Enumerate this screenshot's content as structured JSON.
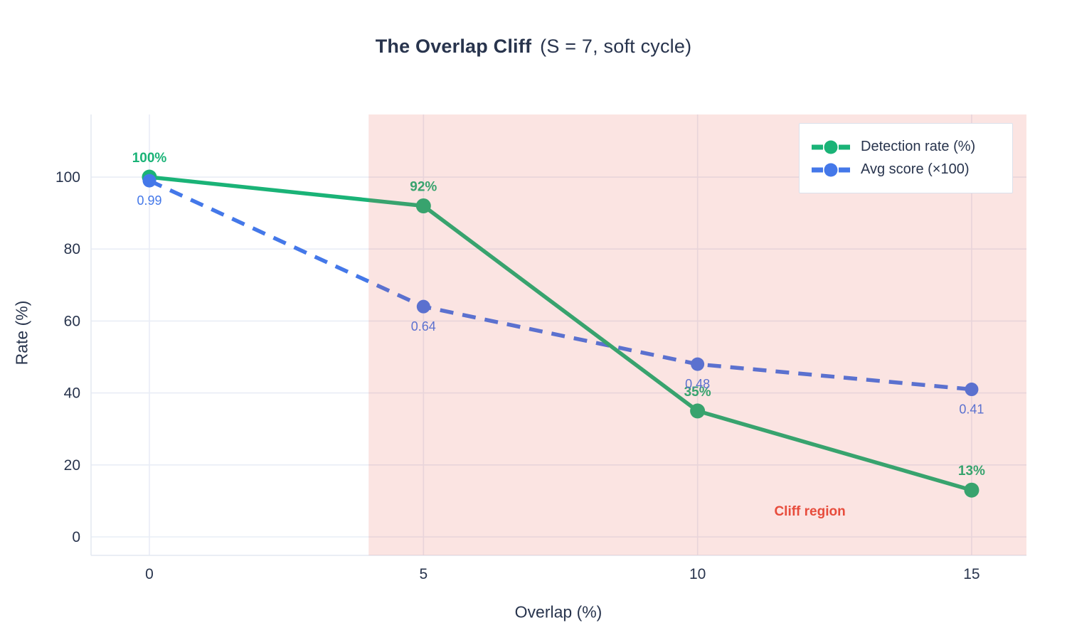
{
  "title": {
    "main": "The Overlap Cliff",
    "sub": "(S = 7, soft cycle)",
    "color": "#28344d"
  },
  "chart_data": {
    "type": "line",
    "title": "The Overlap Cliff (S = 7, soft cycle)",
    "xlabel": "Overlap (%)",
    "ylabel": "Rate (%)",
    "x": [
      0,
      5,
      10,
      15
    ],
    "series": [
      {
        "name": "Detection rate (%)",
        "values": [
          100,
          92,
          35,
          13
        ],
        "point_labels": [
          "100%",
          "92%",
          "35%",
          "13%"
        ],
        "label_side": "top",
        "color": "#1ab377",
        "dash": "",
        "line_width": 5.5,
        "marker_radius": 10.5,
        "label_font_size": 19,
        "label_bold": true
      },
      {
        "name": "Avg score (×100)",
        "values": [
          99,
          64,
          48,
          41
        ],
        "point_labels": [
          "0.99",
          "0.64",
          "0.48",
          "0.41"
        ],
        "label_side": "bottom",
        "color": "#4478e9",
        "dash": "19 13",
        "line_width": 5.5,
        "marker_radius": 9.5,
        "label_font_size": 18,
        "label_bold": false
      }
    ],
    "xticks": [
      0,
      5,
      10,
      15
    ],
    "yticks": [
      0,
      20,
      40,
      60,
      80,
      100
    ],
    "xlim": [
      -1.064,
      16.0
    ],
    "ylim": [
      -5.14,
      117.4
    ],
    "grid": true,
    "grid_color": "#e9edf6",
    "axis_line_color": "#e4e9f2",
    "tick_label_color": "#28344d",
    "tick_font_size": 21,
    "legend_position": "top-right",
    "region": {
      "x0": 4,
      "x1": 16.0,
      "fill": "rgba(231, 76, 60, 0.15)",
      "label": "Cliff region",
      "label_color": "#e74c3c",
      "label_x": 12.05,
      "label_y": 7.3
    }
  }
}
